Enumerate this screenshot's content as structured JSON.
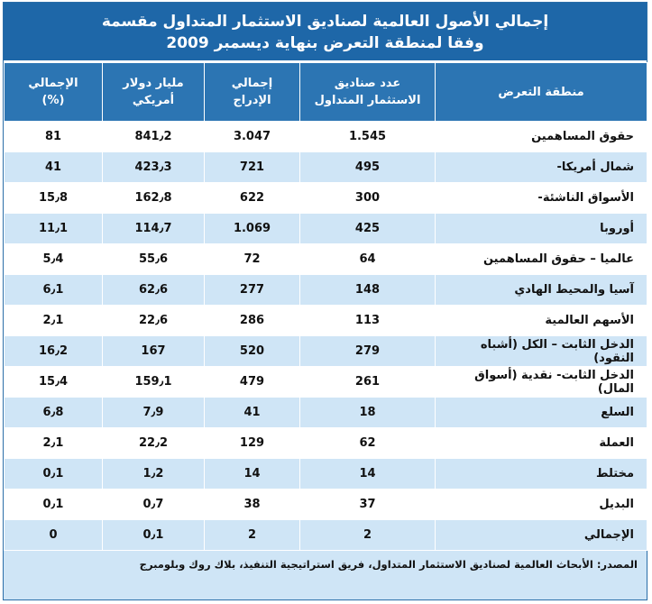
{
  "title": {
    "line1": "إجمالي الأصول العالمية لصناديق الاستثمار المتداول مقسمة",
    "line2": "وفقا لمنطقة التعرض بنهاية ديسمبر 2009"
  },
  "headers": {
    "region": "منطقة التعرض",
    "funds_l1": "عدد صناديق",
    "funds_l2": "الاستثمار المتداول",
    "listings_l1": "إجمالي",
    "listings_l2": "الإدراج",
    "usd_l1": "مليار دولار",
    "usd_l2": "أمريكي",
    "pct_l1": "الإجمالي",
    "pct_l2": "(%)"
  },
  "rows": [
    {
      "region": "حقوق المساهمين",
      "funds": "1.545",
      "listings": "3.047",
      "usd": "841٫2",
      "pct": "81"
    },
    {
      "region": "شمال أمريكا-",
      "funds": "495",
      "listings": "721",
      "usd": "423٫3",
      "pct": "41"
    },
    {
      "region": "الأسواق الناشئة-",
      "funds": "300",
      "listings": "622",
      "usd": "162٫8",
      "pct": "15٫8"
    },
    {
      "region": "أوروبا",
      "funds": "425",
      "listings": "1.069",
      "usd": "114٫7",
      "pct": "11٫1"
    },
    {
      "region": "عالميا – حقوق المساهمين",
      "funds": "64",
      "listings": "72",
      "usd": "55٫6",
      "pct": "5٫4"
    },
    {
      "region": "آسيا والمحيط الهادي",
      "funds": "148",
      "listings": "277",
      "usd": "62٫6",
      "pct": "6٫1"
    },
    {
      "region": "الأسهم العالمية",
      "funds": "113",
      "listings": "286",
      "usd": "22٫6",
      "pct": "2٫1"
    },
    {
      "region": "الدخل الثابت – الكل (أشباه النقود)",
      "funds": "279",
      "listings": "520",
      "usd": "167",
      "pct": "16٫2"
    },
    {
      "region": "الدخل الثابت- نقدية (أسواق المال)",
      "funds": "261",
      "listings": "479",
      "usd": "159٫1",
      "pct": "15٫4"
    },
    {
      "region": "السلع",
      "funds": "18",
      "listings": "41",
      "usd": "7٫9",
      "pct": "6٫8"
    },
    {
      "region": "العملة",
      "funds": "62",
      "listings": "129",
      "usd": "22٫2",
      "pct": "2٫1"
    },
    {
      "region": "مختلط",
      "funds": "14",
      "listings": "14",
      "usd": "1٫2",
      "pct": "0٫1"
    },
    {
      "region": "البديل",
      "funds": "37",
      "listings": "38",
      "usd": "0٫7",
      "pct": "0٫1"
    },
    {
      "region": "الإجمالي",
      "funds": "2",
      "listings": "2",
      "usd": "0٫1",
      "pct": "0"
    }
  ],
  "source": "المصدر: الأبحاث العالمية لصناديق الاستثمار المتداول، فريق استراتيجية التنفيذ، بلاك روك وبلومبرج"
}
